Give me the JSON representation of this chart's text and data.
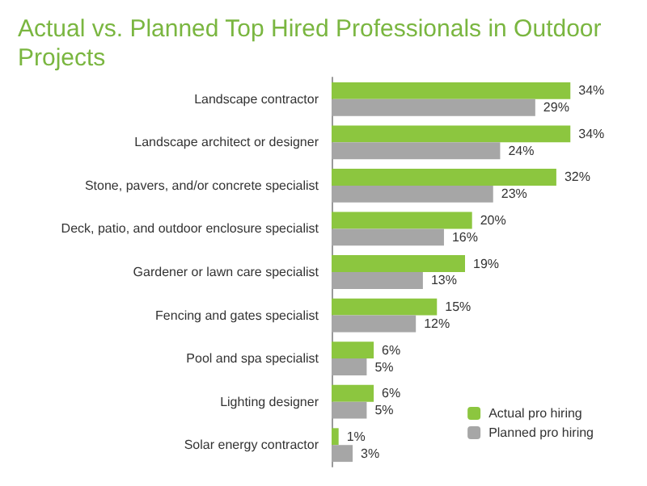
{
  "chart_data": {
    "type": "bar",
    "orientation": "horizontal",
    "title": "Actual vs. Planned Top Hired Professionals in Outdoor Projects",
    "categories": [
      "Landscape contractor",
      "Landscape architect or designer",
      "Stone, pavers, and/or concrete specialist",
      "Deck, patio, and outdoor enclosure specialist",
      "Gardener or lawn care specialist",
      "Fencing and gates specialist",
      "Pool and spa specialist",
      "Lighting designer",
      "Solar energy contractor"
    ],
    "series": [
      {
        "name": "Actual pro hiring",
        "color": "#8cc63f",
        "values": [
          34,
          34,
          32,
          20,
          19,
          15,
          6,
          6,
          1
        ],
        "value_labels": [
          "34%",
          "34%",
          "32%",
          "20%",
          "19%",
          "15%",
          "6%",
          "6%",
          "1%"
        ]
      },
      {
        "name": "Planned pro hiring",
        "color": "#a6a6a6",
        "values": [
          29,
          24,
          23,
          16,
          13,
          12,
          5,
          5,
          3
        ],
        "value_labels": [
          "29%",
          "24%",
          "23%",
          "16%",
          "13%",
          "12%",
          "5%",
          "5%",
          "3%"
        ]
      }
    ],
    "legend": "bottom right",
    "grid": false
  }
}
